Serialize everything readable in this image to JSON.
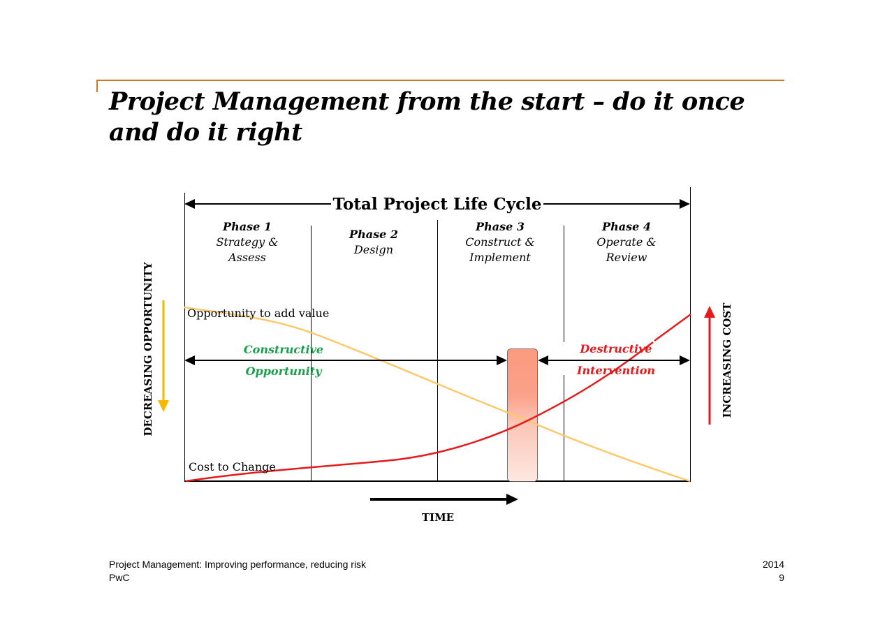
{
  "slide": {
    "title_line1": "Project Management from the start – do it once",
    "title_line2": "and do it right"
  },
  "diagram": {
    "lifecycle_label": "Total Project Life Cycle",
    "phases": [
      {
        "name": "Phase 1",
        "desc_line1": "Strategy &",
        "desc_line2": "Assess"
      },
      {
        "name": "Phase 2",
        "desc_line1": "Design",
        "desc_line2": ""
      },
      {
        "name": "Phase 3",
        "desc_line1": "Construct &",
        "desc_line2": "Implement"
      },
      {
        "name": "Phase 4",
        "desc_line1": "Operate &",
        "desc_line2": "Review"
      }
    ],
    "opportunity_curve_label": "Opportunity to add value",
    "cost_curve_label": "Cost to Change",
    "constructive_line1": "Constructive",
    "constructive_line2": "Opportunity",
    "destructive_line1": "Destructive",
    "destructive_line2": "Intervention",
    "left_axis_label": "DECREASING OPPORTUNITY",
    "right_axis_label": "INCREASING COST",
    "time_label": "TIME",
    "colors": {
      "opportunity_curve": "#fdc86a",
      "cost_curve": "#e41a1c",
      "constructive_text": "#1a9e4b",
      "destructive_text": "#e41a1c",
      "left_arrow": "#f5b800",
      "right_arrow": "#e41a1c",
      "highlight_bar_top": "#fb9a7e",
      "highlight_bar_bottom": "#fde8e2"
    }
  },
  "footer": {
    "left_line1": "Project Management: Improving performance, reducing risk",
    "left_line2": "PwC",
    "right_line1": "2014",
    "right_line2": "9"
  }
}
